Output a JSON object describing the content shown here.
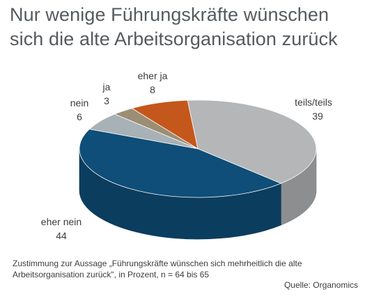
{
  "title": "Nur wenige Führungskräfte wünschen sich die alte Arbeitsorganisation zurück",
  "footnote": "Zustimmung zur Aussage „Führungskräfte wünschen sich mehrheitlich die alte Arbeitsorganisation zurück\", in Prozent, n = 64 bis 65",
  "source": "Quelle: Organomics",
  "chart_data": {
    "type": "pie",
    "style": "3d",
    "title": "Nur wenige Führungskräfte wünschen sich die alte Arbeitsorganisation zurück",
    "unit": "Prozent",
    "slices": [
      {
        "label": "teils/teils",
        "value": 39,
        "color": "#b4b6b8"
      },
      {
        "label": "eher nein",
        "value": 44,
        "color": "#0e4e78"
      },
      {
        "label": "nein",
        "value": 6,
        "color": "#a7b1b6"
      },
      {
        "label": "ja",
        "value": 3,
        "color": "#9c8e74"
      },
      {
        "label": "eher ja",
        "value": 8,
        "color": "#c4571c"
      }
    ]
  }
}
